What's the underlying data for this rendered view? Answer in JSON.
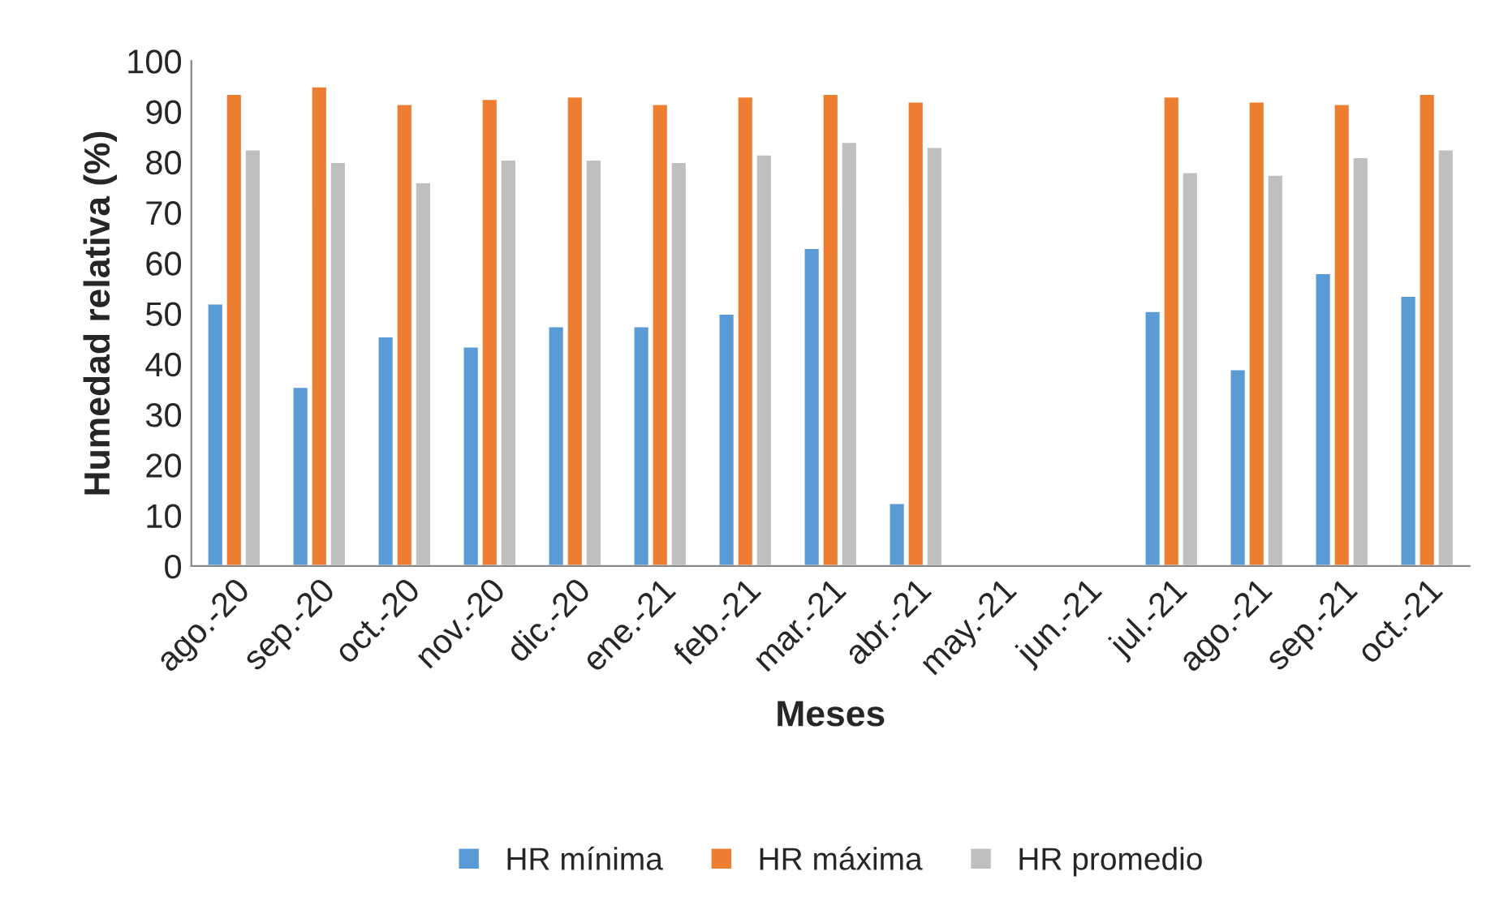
{
  "chart_data": {
    "type": "bar",
    "xlabel": "Meses",
    "ylabel": "Humedad relativa (%)",
    "categories": [
      "ago.-20",
      "sep.-20",
      "oct.-20",
      "nov.-20",
      "dic.-20",
      "ene.-21",
      "feb.-21",
      "mar.-21",
      "abr.-21",
      "may.-21",
      "jun.-21",
      "jul.-21",
      "ago.-21",
      "sep.-21",
      "oct.-21"
    ],
    "series": [
      {
        "name": "HR mínima",
        "color": "#5b9bd5",
        "values": [
          52,
          35.5,
          45.5,
          43.5,
          47.5,
          47.5,
          50,
          63,
          12.5,
          null,
          null,
          50.5,
          39,
          58,
          53.5
        ]
      },
      {
        "name": "HR máxima",
        "color": "#ed7d31",
        "values": [
          93.5,
          95,
          91.5,
          92.5,
          93,
          91.5,
          93,
          93.5,
          92,
          null,
          null,
          93,
          92,
          91.5,
          93.5
        ]
      },
      {
        "name": "HR promedio",
        "color": "#bfbfbf",
        "values": [
          82.5,
          80,
          76,
          80.5,
          80.5,
          80,
          81.5,
          84,
          83,
          null,
          null,
          78,
          77.5,
          81,
          82.5
        ]
      }
    ],
    "ylim": [
      0,
      100
    ],
    "yticks": [
      0,
      10,
      20,
      30,
      40,
      50,
      60,
      70,
      80,
      90,
      100
    ],
    "legend": "bottom",
    "grid": false
  }
}
